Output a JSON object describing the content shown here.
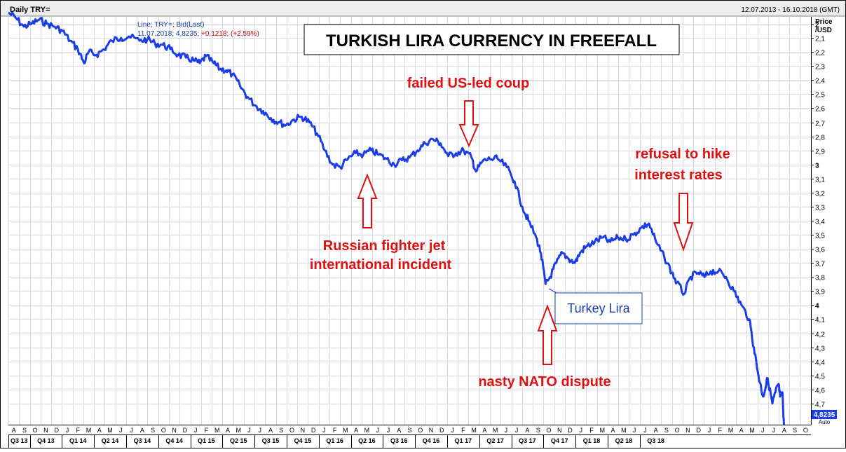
{
  "header": {
    "left_title": "Daily TRY=",
    "date_range": "12.07.2013 - 16.10.2018 (GMT)"
  },
  "info_box": {
    "line1": "Line; TRY=; Bid(Last)",
    "line2_prefix": "11.07.2018; 4,8235;",
    "line2_change": "+0,1218; (+2,59%)",
    "change_color": "#cc0000"
  },
  "axis": {
    "price_label_1": "Price",
    "price_label_2": "/USD",
    "last_value_tag": "4,8235",
    "auto_label": "Auto"
  },
  "annotations": {
    "coup": "failed US-led coup",
    "russia_1": "Russian fighter jet",
    "russia_2": "international incident",
    "nato": "nasty NATO dispute",
    "rates_1": "refusal to hike",
    "rates_2": "interest rates",
    "legend": "Turkey  Lira",
    "annotation_color": "#e01010"
  },
  "colors": {
    "line": "#1a3de8",
    "grid": "#d9d9e6",
    "arrow": "#e01010"
  },
  "chart_data": {
    "type": "line",
    "title": "TURKISH LIRA CURRENCY IN FREEFALL",
    "series_name": "TRY= Bid(Last)",
    "ylabel": "Price /USD",
    "y_inverted": true,
    "ylim": [
      1.95,
      4.85
    ],
    "y_ticks": [
      2,
      2.1,
      2.2,
      2.3,
      2.4,
      2.5,
      2.6,
      2.7,
      2.8,
      2.9,
      3,
      3.1,
      3.2,
      3.3,
      3.4,
      3.5,
      3.6,
      3.7,
      3.8,
      3.9,
      4,
      4.1,
      4.2,
      4.3,
      4.4,
      4.5,
      4.6,
      4.7
    ],
    "y_tick_labels": [
      "2",
      "2,1",
      "2,2",
      "2,3",
      "2,4",
      "2,5",
      "2,6",
      "2,7",
      "2,8",
      "2,9",
      "3",
      "3,1",
      "3,2",
      "3,3",
      "3,4",
      "3,5",
      "3,6",
      "3,7",
      "3,8",
      "3,9",
      "4",
      "4,1",
      "4,2",
      "4,3",
      "4,4",
      "4,5",
      "4,6",
      "4,7"
    ],
    "month_labels": [
      "A",
      "S",
      "O",
      "N",
      "D",
      "J",
      "F",
      "M",
      "A",
      "M",
      "J",
      "J",
      "A",
      "S",
      "O",
      "N",
      "D",
      "J",
      "F",
      "M",
      "A",
      "M",
      "J",
      "J",
      "A",
      "S",
      "O",
      "N",
      "D",
      "J",
      "F",
      "M",
      "A",
      "M",
      "J",
      "J",
      "A",
      "S",
      "O",
      "N",
      "D",
      "J",
      "F",
      "M",
      "A",
      "M",
      "J",
      "J",
      "A",
      "S",
      "O",
      "N",
      "D",
      "J",
      "F",
      "M",
      "A",
      "M",
      "J",
      "J",
      "A",
      "S",
      "O",
      "N",
      "D",
      "J",
      "F",
      "M",
      "A",
      "M",
      "J",
      "J",
      "A",
      "S",
      "O"
    ],
    "quarter_labels": [
      "Q3 13",
      "Q4 13",
      "Q1 14",
      "Q2 14",
      "Q3 14",
      "Q4 14",
      "Q1 15",
      "Q2 15",
      "Q3 15",
      "Q4 15",
      "Q1 16",
      "Q2 16",
      "Q3 16",
      "Q4 16",
      "Q1 17",
      "Q2 17",
      "Q3 17",
      "Q4 17",
      "Q1 18",
      "Q2 18",
      "Q3 18"
    ],
    "x_start": 2013.55,
    "x_end": 2018.75,
    "points": [
      [
        2013.55,
        1.92
      ],
      [
        2013.6,
        1.96
      ],
      [
        2013.65,
        2.02
      ],
      [
        2013.7,
        2.0
      ],
      [
        2013.75,
        1.97
      ],
      [
        2013.8,
        2.0
      ],
      [
        2013.85,
        2.02
      ],
      [
        2013.9,
        2.05
      ],
      [
        2013.95,
        2.12
      ],
      [
        2014.0,
        2.18
      ],
      [
        2014.04,
        2.28
      ],
      [
        2014.07,
        2.2
      ],
      [
        2014.12,
        2.22
      ],
      [
        2014.17,
        2.18
      ],
      [
        2014.22,
        2.12
      ],
      [
        2014.28,
        2.1
      ],
      [
        2014.33,
        2.09
      ],
      [
        2014.4,
        2.12
      ],
      [
        2014.45,
        2.11
      ],
      [
        2014.5,
        2.14
      ],
      [
        2014.55,
        2.15
      ],
      [
        2014.6,
        2.18
      ],
      [
        2014.65,
        2.22
      ],
      [
        2014.7,
        2.24
      ],
      [
        2014.75,
        2.26
      ],
      [
        2014.79,
        2.28
      ],
      [
        2014.83,
        2.23
      ],
      [
        2014.88,
        2.28
      ],
      [
        2014.92,
        2.32
      ],
      [
        2014.96,
        2.33
      ],
      [
        2015.0,
        2.36
      ],
      [
        2015.05,
        2.44
      ],
      [
        2015.1,
        2.52
      ],
      [
        2015.15,
        2.58
      ],
      [
        2015.2,
        2.62
      ],
      [
        2015.25,
        2.67
      ],
      [
        2015.3,
        2.7
      ],
      [
        2015.35,
        2.72
      ],
      [
        2015.4,
        2.68
      ],
      [
        2015.45,
        2.66
      ],
      [
        2015.5,
        2.7
      ],
      [
        2015.55,
        2.78
      ],
      [
        2015.6,
        2.9
      ],
      [
        2015.65,
        3.0
      ],
      [
        2015.7,
        3.02
      ],
      [
        2015.75,
        2.96
      ],
      [
        2015.8,
        2.92
      ],
      [
        2015.85,
        2.93
      ],
      [
        2015.9,
        2.9
      ],
      [
        2015.95,
        2.93
      ],
      [
        2016.0,
        2.96
      ],
      [
        2016.05,
        3.0
      ],
      [
        2016.1,
        2.97
      ],
      [
        2016.15,
        2.95
      ],
      [
        2016.2,
        2.9
      ],
      [
        2016.25,
        2.85
      ],
      [
        2016.3,
        2.82
      ],
      [
        2016.35,
        2.85
      ],
      [
        2016.4,
        2.94
      ],
      [
        2016.45,
        2.92
      ],
      [
        2016.5,
        2.9
      ],
      [
        2016.55,
        2.95
      ],
      [
        2016.58,
        3.05
      ],
      [
        2016.62,
        2.98
      ],
      [
        2016.67,
        2.96
      ],
      [
        2016.72,
        2.96
      ],
      [
        2016.78,
        3.02
      ],
      [
        2016.83,
        3.12
      ],
      [
        2016.88,
        3.3
      ],
      [
        2016.92,
        3.4
      ],
      [
        2016.97,
        3.52
      ],
      [
        2017.0,
        3.63
      ],
      [
        2017.03,
        3.85
      ],
      [
        2017.06,
        3.8
      ],
      [
        2017.1,
        3.7
      ],
      [
        2017.14,
        3.63
      ],
      [
        2017.18,
        3.67
      ],
      [
        2017.22,
        3.7
      ],
      [
        2017.26,
        3.62
      ],
      [
        2017.3,
        3.58
      ],
      [
        2017.35,
        3.55
      ],
      [
        2017.4,
        3.52
      ],
      [
        2017.45,
        3.55
      ],
      [
        2017.5,
        3.52
      ],
      [
        2017.55,
        3.53
      ],
      [
        2017.6,
        3.5
      ],
      [
        2017.65,
        3.45
      ],
      [
        2017.7,
        3.42
      ],
      [
        2017.75,
        3.56
      ],
      [
        2017.8,
        3.66
      ],
      [
        2017.85,
        3.77
      ],
      [
        2017.88,
        3.84
      ],
      [
        2017.93,
        3.92
      ],
      [
        2017.97,
        3.8
      ],
      [
        2018.02,
        3.77
      ],
      [
        2018.06,
        3.8
      ],
      [
        2018.1,
        3.76
      ],
      [
        2018.15,
        3.76
      ],
      [
        2018.2,
        3.8
      ],
      [
        2018.25,
        3.9
      ],
      [
        2018.3,
        4.0
      ],
      [
        2018.35,
        4.1
      ],
      [
        2018.38,
        4.3
      ],
      [
        2018.41,
        4.5
      ],
      [
        2018.44,
        4.65
      ],
      [
        2018.47,
        4.52
      ],
      [
        2018.5,
        4.7
      ],
      [
        2018.52,
        4.62
      ],
      [
        2018.54,
        4.56
      ],
      [
        2018.55,
        4.65
      ],
      [
        2018.565,
        4.62
      ],
      [
        2018.575,
        4.85
      ]
    ]
  }
}
